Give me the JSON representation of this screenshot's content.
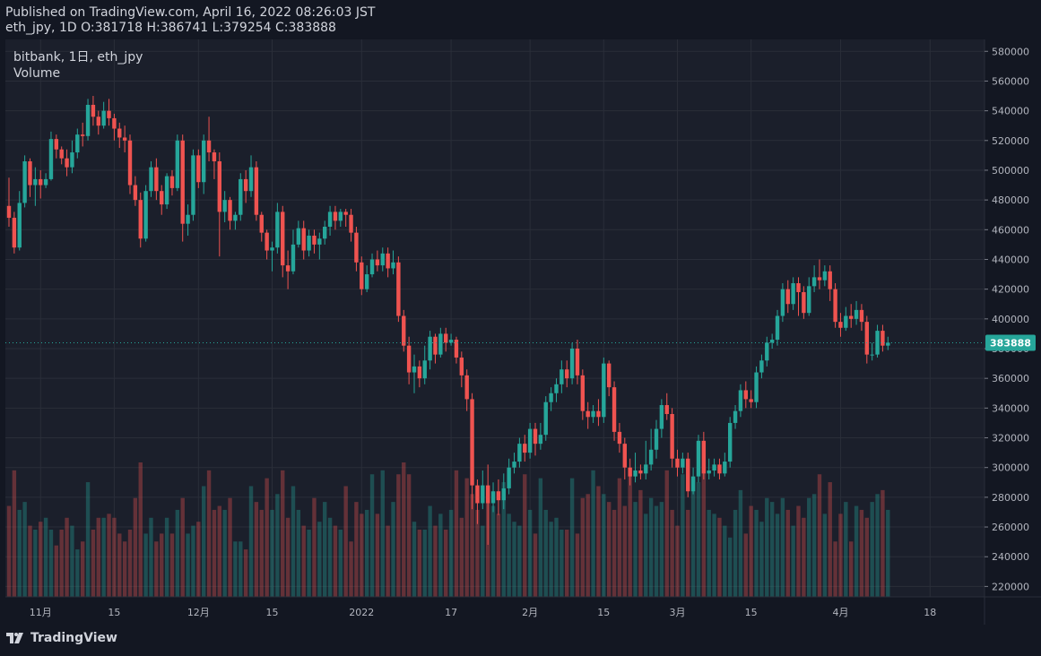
{
  "header": {
    "published": "Published on TradingView.com, April 16, 2022 08:26:03 JST",
    "ohlc": "eth_jpy, 1D O:381718 H:386741 L:379254 C:383888"
  },
  "legend": {
    "symbol": "bitbank, 1日, eth_jpy",
    "volume": "Volume"
  },
  "footer": {
    "brand": "TradingView"
  },
  "colors": {
    "background": "#1b1f2b",
    "up": "#26a69a",
    "down": "#ef5350",
    "grid": "#2a2e39",
    "price_line": "#26a69a"
  },
  "chart_data": {
    "type": "candlestick",
    "y_ticks": [
      580000,
      560000,
      540000,
      520000,
      500000,
      480000,
      460000,
      440000,
      420000,
      400000,
      380000,
      360000,
      340000,
      320000,
      300000,
      280000,
      260000,
      240000,
      220000
    ],
    "ylim": [
      213000,
      588000
    ],
    "x_ticks": [
      {
        "label": "11月",
        "i": 6
      },
      {
        "label": "15",
        "i": 20
      },
      {
        "label": "12月",
        "i": 36
      },
      {
        "label": "15",
        "i": 50
      },
      {
        "label": "2022",
        "i": 67
      },
      {
        "label": "17",
        "i": 84
      },
      {
        "label": "2月",
        "i": 99
      },
      {
        "label": "15",
        "i": 113
      },
      {
        "label": "3月",
        "i": 127
      },
      {
        "label": "15",
        "i": 141
      },
      {
        "label": "4月",
        "i": 158
      },
      {
        "label": "18",
        "i": 175
      }
    ],
    "last_price": 383888,
    "candles": [
      [
        476000,
        468000,
        495000,
        462000
      ],
      [
        468000,
        448000,
        472000,
        444000
      ],
      [
        448000,
        478000,
        486000,
        446000
      ],
      [
        478000,
        506000,
        510000,
        475000
      ],
      [
        506000,
        490000,
        508000,
        482000
      ],
      [
        490000,
        494000,
        502000,
        476000
      ],
      [
        494000,
        490000,
        500000,
        481000
      ],
      [
        490000,
        494000,
        498000,
        488000
      ],
      [
        494000,
        521000,
        526000,
        493000
      ],
      [
        521000,
        514000,
        524000,
        508000
      ],
      [
        514000,
        508000,
        516000,
        504000
      ],
      [
        508000,
        502000,
        514000,
        496000
      ],
      [
        502000,
        512000,
        520000,
        498000
      ],
      [
        512000,
        524000,
        528000,
        508000
      ],
      [
        524000,
        523000,
        532000,
        516000
      ],
      [
        523000,
        544000,
        548000,
        520000
      ],
      [
        544000,
        536000,
        550000,
        530000
      ],
      [
        536000,
        530000,
        540000,
        524000
      ],
      [
        530000,
        540000,
        546000,
        528000
      ],
      [
        540000,
        535000,
        548000,
        530000
      ],
      [
        535000,
        528000,
        538000,
        520000
      ],
      [
        528000,
        522000,
        532000,
        515000
      ],
      [
        522000,
        520000,
        530000,
        512000
      ],
      [
        520000,
        490000,
        524000,
        484000
      ],
      [
        490000,
        480000,
        496000,
        476000
      ],
      [
        480000,
        454000,
        485000,
        448000
      ],
      [
        454000,
        486000,
        490000,
        452000
      ],
      [
        486000,
        502000,
        506000,
        482000
      ],
      [
        502000,
        486000,
        508000,
        480000
      ],
      [
        486000,
        477000,
        490000,
        470000
      ],
      [
        477000,
        496000,
        498000,
        474000
      ],
      [
        496000,
        488000,
        500000,
        483000
      ],
      [
        488000,
        520000,
        524000,
        486000
      ],
      [
        520000,
        464000,
        524000,
        452000
      ],
      [
        464000,
        470000,
        477000,
        456000
      ],
      [
        470000,
        510000,
        514000,
        466000
      ],
      [
        510000,
        492000,
        514000,
        488000
      ],
      [
        492000,
        520000,
        524000,
        484000
      ],
      [
        520000,
        512000,
        536000,
        506000
      ],
      [
        512000,
        506000,
        514000,
        494000
      ],
      [
        506000,
        472000,
        512000,
        442000
      ],
      [
        472000,
        480000,
        486000,
        465000
      ],
      [
        480000,
        466000,
        482000,
        460000
      ],
      [
        466000,
        470000,
        472000,
        460000
      ],
      [
        470000,
        494000,
        498000,
        466000
      ],
      [
        494000,
        486000,
        500000,
        478000
      ],
      [
        486000,
        502000,
        510000,
        482000
      ],
      [
        502000,
        470000,
        506000,
        466000
      ],
      [
        470000,
        458000,
        472000,
        452000
      ],
      [
        458000,
        446000,
        460000,
        440000
      ],
      [
        446000,
        448000,
        452000,
        432000
      ],
      [
        448000,
        472000,
        478000,
        444000
      ],
      [
        472000,
        436000,
        476000,
        428000
      ],
      [
        436000,
        432000,
        446000,
        420000
      ],
      [
        432000,
        450000,
        460000,
        430000
      ],
      [
        450000,
        461000,
        466000,
        448000
      ],
      [
        461000,
        446000,
        466000,
        440000
      ],
      [
        446000,
        456000,
        460000,
        442000
      ],
      [
        456000,
        450000,
        460000,
        444000
      ],
      [
        450000,
        454000,
        458000,
        440000
      ],
      [
        454000,
        462000,
        466000,
        450000
      ],
      [
        462000,
        472000,
        476000,
        456000
      ],
      [
        472000,
        466000,
        476000,
        460000
      ],
      [
        466000,
        472000,
        474000,
        462000
      ],
      [
        472000,
        470000,
        474000,
        462000
      ],
      [
        470000,
        458000,
        474000,
        452000
      ],
      [
        458000,
        438000,
        462000,
        432000
      ],
      [
        438000,
        420000,
        442000,
        416000
      ],
      [
        420000,
        430000,
        436000,
        418000
      ],
      [
        430000,
        440000,
        444000,
        428000
      ],
      [
        440000,
        436000,
        446000,
        432000
      ],
      [
        436000,
        444000,
        448000,
        432000
      ],
      [
        444000,
        434000,
        448000,
        428000
      ],
      [
        434000,
        438000,
        446000,
        430000
      ],
      [
        438000,
        402000,
        442000,
        398000
      ],
      [
        402000,
        382000,
        406000,
        378000
      ],
      [
        382000,
        364000,
        388000,
        356000
      ],
      [
        364000,
        368000,
        376000,
        350000
      ],
      [
        368000,
        360000,
        372000,
        354000
      ],
      [
        360000,
        372000,
        382000,
        356000
      ],
      [
        372000,
        388000,
        392000,
        366000
      ],
      [
        388000,
        376000,
        390000,
        370000
      ],
      [
        376000,
        390000,
        394000,
        374000
      ],
      [
        390000,
        384000,
        394000,
        378000
      ],
      [
        384000,
        386000,
        390000,
        382000
      ],
      [
        386000,
        374000,
        388000,
        370000
      ],
      [
        374000,
        362000,
        378000,
        354000
      ],
      [
        362000,
        346000,
        366000,
        338000
      ],
      [
        346000,
        288000,
        350000,
        272000
      ],
      [
        288000,
        276000,
        292000,
        262000
      ],
      [
        276000,
        288000,
        298000,
        272000
      ],
      [
        288000,
        276000,
        302000,
        248000
      ],
      [
        276000,
        284000,
        290000,
        270000
      ],
      [
        284000,
        278000,
        292000,
        268000
      ],
      [
        278000,
        286000,
        296000,
        272000
      ],
      [
        286000,
        300000,
        306000,
        282000
      ],
      [
        300000,
        304000,
        310000,
        296000
      ],
      [
        304000,
        316000,
        320000,
        300000
      ],
      [
        316000,
        310000,
        322000,
        304000
      ],
      [
        310000,
        326000,
        330000,
        306000
      ],
      [
        326000,
        316000,
        330000,
        308000
      ],
      [
        316000,
        322000,
        330000,
        312000
      ],
      [
        322000,
        344000,
        348000,
        318000
      ],
      [
        344000,
        350000,
        354000,
        338000
      ],
      [
        350000,
        356000,
        360000,
        344000
      ],
      [
        356000,
        366000,
        372000,
        350000
      ],
      [
        366000,
        360000,
        372000,
        354000
      ],
      [
        360000,
        380000,
        384000,
        356000
      ],
      [
        380000,
        362000,
        386000,
        356000
      ],
      [
        362000,
        338000,
        366000,
        332000
      ],
      [
        338000,
        334000,
        344000,
        326000
      ],
      [
        334000,
        338000,
        342000,
        330000
      ],
      [
        338000,
        334000,
        346000,
        328000
      ],
      [
        334000,
        370000,
        374000,
        330000
      ],
      [
        370000,
        354000,
        372000,
        348000
      ],
      [
        354000,
        324000,
        358000,
        318000
      ],
      [
        324000,
        316000,
        330000,
        310000
      ],
      [
        316000,
        300000,
        320000,
        292000
      ],
      [
        300000,
        294000,
        306000,
        288000
      ],
      [
        294000,
        298000,
        310000,
        290000
      ],
      [
        298000,
        296000,
        302000,
        292000
      ],
      [
        296000,
        302000,
        318000,
        292000
      ],
      [
        302000,
        312000,
        326000,
        298000
      ],
      [
        312000,
        326000,
        332000,
        306000
      ],
      [
        326000,
        342000,
        346000,
        320000
      ],
      [
        342000,
        336000,
        350000,
        332000
      ],
      [
        336000,
        306000,
        340000,
        300000
      ],
      [
        306000,
        300000,
        312000,
        294000
      ],
      [
        300000,
        306000,
        310000,
        296000
      ],
      [
        306000,
        284000,
        310000,
        280000
      ],
      [
        284000,
        294000,
        300000,
        282000
      ],
      [
        294000,
        318000,
        322000,
        290000
      ],
      [
        318000,
        296000,
        324000,
        292000
      ],
      [
        296000,
        298000,
        306000,
        292000
      ],
      [
        298000,
        302000,
        306000,
        294000
      ],
      [
        302000,
        296000,
        306000,
        292000
      ],
      [
        296000,
        304000,
        310000,
        294000
      ],
      [
        304000,
        330000,
        334000,
        300000
      ],
      [
        330000,
        338000,
        342000,
        326000
      ],
      [
        338000,
        352000,
        356000,
        334000
      ],
      [
        352000,
        346000,
        358000,
        340000
      ],
      [
        346000,
        344000,
        352000,
        340000
      ],
      [
        344000,
        364000,
        368000,
        340000
      ],
      [
        364000,
        372000,
        376000,
        360000
      ],
      [
        372000,
        384000,
        388000,
        368000
      ],
      [
        384000,
        386000,
        390000,
        380000
      ],
      [
        386000,
        402000,
        406000,
        382000
      ],
      [
        402000,
        420000,
        424000,
        398000
      ],
      [
        420000,
        410000,
        426000,
        404000
      ],
      [
        410000,
        424000,
        428000,
        406000
      ],
      [
        424000,
        418000,
        428000,
        402000
      ],
      [
        418000,
        404000,
        422000,
        400000
      ],
      [
        404000,
        422000,
        428000,
        402000
      ],
      [
        422000,
        428000,
        436000,
        418000
      ],
      [
        428000,
        426000,
        440000,
        420000
      ],
      [
        426000,
        432000,
        436000,
        422000
      ],
      [
        432000,
        420000,
        436000,
        412000
      ],
      [
        420000,
        398000,
        424000,
        394000
      ],
      [
        398000,
        394000,
        404000,
        388000
      ],
      [
        394000,
        402000,
        408000,
        392000
      ],
      [
        402000,
        400000,
        410000,
        394000
      ],
      [
        400000,
        406000,
        412000,
        396000
      ],
      [
        406000,
        398000,
        410000,
        392000
      ],
      [
        398000,
        376000,
        402000,
        370000
      ],
      [
        376000,
        376000,
        384000,
        372000
      ],
      [
        376000,
        392000,
        396000,
        374000
      ],
      [
        392000,
        382000,
        396000,
        378000
      ],
      [
        382000,
        384000,
        388000,
        379000
      ]
    ],
    "volumes": [
      0.23,
      0.32,
      0.22,
      0.24,
      0.18,
      0.17,
      0.19,
      0.2,
      0.17,
      0.13,
      0.17,
      0.2,
      0.18,
      0.12,
      0.14,
      0.29,
      0.17,
      0.2,
      0.2,
      0.21,
      0.2,
      0.16,
      0.14,
      0.17,
      0.25,
      0.34,
      0.16,
      0.2,
      0.14,
      0.16,
      0.2,
      0.16,
      0.22,
      0.25,
      0.16,
      0.18,
      0.19,
      0.28,
      0.32,
      0.22,
      0.23,
      0.22,
      0.25,
      0.14,
      0.14,
      0.12,
      0.28,
      0.24,
      0.22,
      0.3,
      0.22,
      0.26,
      0.32,
      0.2,
      0.28,
      0.22,
      0.18,
      0.17,
      0.25,
      0.19,
      0.24,
      0.2,
      0.18,
      0.17,
      0.28,
      0.14,
      0.24,
      0.21,
      0.22,
      0.31,
      0.21,
      0.32,
      0.18,
      0.24,
      0.31,
      0.34,
      0.31,
      0.19,
      0.17,
      0.17,
      0.23,
      0.18,
      0.21,
      0.17,
      0.22,
      0.32,
      0.2,
      0.3,
      0.26,
      0.22,
      0.18,
      0.24,
      0.23,
      0.21,
      0.29,
      0.21,
      0.19,
      0.18,
      0.31,
      0.22,
      0.16,
      0.3,
      0.22,
      0.19,
      0.2,
      0.17,
      0.17,
      0.3,
      0.16,
      0.25,
      0.26,
      0.32,
      0.28,
      0.26,
      0.24,
      0.22,
      0.3,
      0.23,
      0.31,
      0.24,
      0.27,
      0.21,
      0.25,
      0.23,
      0.24,
      0.32,
      0.22,
      0.18,
      0.31,
      0.22,
      0.3,
      0.29,
      0.32,
      0.22,
      0.21,
      0.2,
      0.18,
      0.15,
      0.22,
      0.27,
      0.16,
      0.23,
      0.22,
      0.19,
      0.25,
      0.24,
      0.21,
      0.25,
      0.22,
      0.18,
      0.23,
      0.2,
      0.25,
      0.26,
      0.31,
      0.21,
      0.29,
      0.14,
      0.21,
      0.24,
      0.14,
      0.23,
      0.22,
      0.2,
      0.24,
      0.26,
      0.27,
      0.22,
      0.19,
      0.23,
      0.24,
      0.18,
      0.16,
      0.2
    ]
  }
}
